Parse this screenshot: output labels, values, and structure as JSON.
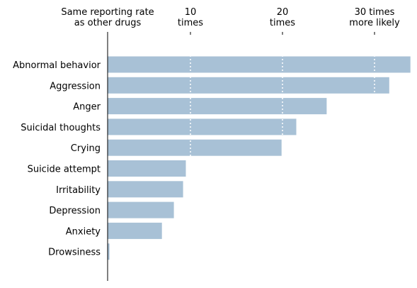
{
  "chart_data": {
    "type": "bar",
    "orientation": "horizontal",
    "categories": [
      "Abnormal behavior",
      "Aggression",
      "Anger",
      "Suicidal thoughts",
      "Crying",
      "Suicide attempt",
      "Irritability",
      "Depression",
      "Anxiety",
      "Drowsiness"
    ],
    "values": [
      33.9,
      31.6,
      24.8,
      21.5,
      19.9,
      9.5,
      9.2,
      8.2,
      6.9,
      1.2
    ],
    "xlim": [
      1,
      34
    ],
    "xticks": [
      {
        "value": 1,
        "lines": [
          "Same reporting rate",
          "as other drugs"
        ]
      },
      {
        "value": 10,
        "lines": [
          "10",
          "times"
        ]
      },
      {
        "value": 20,
        "lines": [
          "20",
          "times"
        ]
      },
      {
        "value": 30,
        "lines": [
          "30 times",
          "more likely"
        ]
      }
    ],
    "xaxis_position": "top",
    "gridlines": [
      10,
      20,
      30
    ],
    "grid_style": "white dotted, drawn over bars",
    "bar_color": "#a8c1d6",
    "title": "",
    "xlabel": "",
    "ylabel": ""
  }
}
